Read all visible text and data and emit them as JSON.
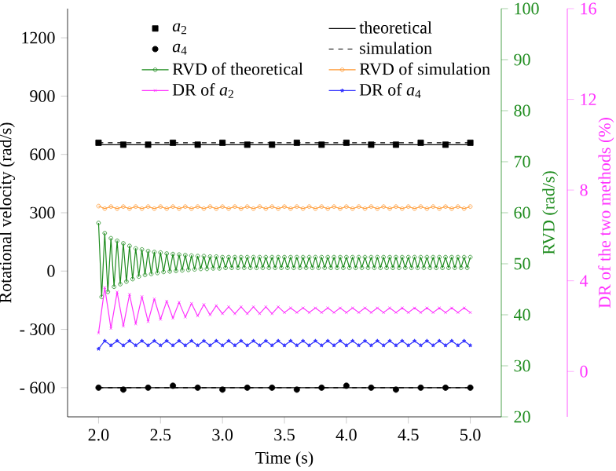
{
  "chart_data": {
    "type": "line",
    "xlabel": "Time (s)",
    "ylabel": "Rotational velocity (rad/s)",
    "y2label": "RVD (rad/s)",
    "y3label": "DR of the two methods (%)",
    "xlim": [
      1.75,
      5.25
    ],
    "xticks": [
      {
        "value": 2,
        "label": "2.0"
      },
      {
        "value": 2.5,
        "label": "2.5"
      },
      {
        "value": 3,
        "label": "3.0"
      },
      {
        "value": 3.5,
        "label": "3.5"
      },
      {
        "value": 4,
        "label": "4.0"
      },
      {
        "value": 4.5,
        "label": "4.5"
      },
      {
        "value": 5,
        "label": "5.0"
      }
    ],
    "ylim": [
      -750,
      1350
    ],
    "yticks": [
      {
        "value": -600,
        "label": "- 600"
      },
      {
        "value": -300,
        "label": "- 300"
      },
      0,
      300,
      600,
      900,
      1200
    ],
    "y2lim": [
      20,
      100
    ],
    "y2ticks": [
      20,
      30,
      40,
      50,
      60,
      70,
      80,
      90,
      100
    ],
    "y3lim": [
      -2,
      16
    ],
    "y3ticks": [
      0,
      4,
      8,
      12,
      16
    ],
    "legend": "top",
    "x": [
      2,
      2.025,
      2.05,
      2.075,
      2.1,
      2.125,
      2.15,
      2.175,
      2.2,
      2.225,
      2.25,
      2.275,
      2.3,
      2.325,
      2.35,
      2.375,
      2.4,
      2.425,
      2.45,
      2.475,
      2.5,
      2.525,
      2.55,
      2.575,
      2.6,
      2.625,
      2.65,
      2.675,
      2.7,
      2.725,
      2.75,
      2.775,
      2.8,
      2.825,
      2.85,
      2.875,
      2.9,
      2.925,
      2.95,
      2.975,
      3,
      3.025,
      3.05,
      3.075,
      3.1,
      3.125,
      3.15,
      3.175,
      3.2,
      3.225,
      3.25,
      3.275,
      3.3,
      3.325,
      3.35,
      3.375,
      3.4,
      3.425,
      3.45,
      3.475,
      3.5,
      3.525,
      3.55,
      3.575,
      3.6,
      3.625,
      3.65,
      3.675,
      3.7,
      3.725,
      3.75,
      3.775,
      3.8,
      3.825,
      3.85,
      3.875,
      3.9,
      3.925,
      3.95,
      3.975,
      4,
      4.025,
      4.05,
      4.075,
      4.1,
      4.125,
      4.15,
      4.175,
      4.2,
      4.225,
      4.25,
      4.275,
      4.3,
      4.325,
      4.35,
      4.375,
      4.4,
      4.425,
      4.45,
      4.475,
      4.5,
      4.525,
      4.55,
      4.575,
      4.6,
      4.625,
      4.65,
      4.675,
      4.7,
      4.725,
      4.75,
      4.775,
      4.8,
      4.825,
      4.85,
      4.875,
      4.9,
      4.925,
      4.95,
      4.975,
      5
    ],
    "series": [
      {
        "name": "*a*$_{2}$",
        "type": "scatter",
        "marker": "square",
        "color": "#000000",
        "x": [
          2,
          2.2,
          2.4,
          2.6,
          2.8,
          3,
          3.2,
          3.4,
          3.6,
          3.8,
          4,
          4.2,
          4.4,
          4.6,
          4.8,
          5
        ],
        "values": [
          660,
          650,
          650,
          660,
          650,
          660,
          650,
          650,
          660,
          650,
          660,
          650,
          650,
          660,
          650,
          660
        ]
      },
      {
        "name": "theoretical",
        "color": "#000000",
        "line_style": "solid",
        "x": [
          2,
          5
        ],
        "values": [
          650,
          650
        ]
      },
      {
        "name": "*a*$_{4}$",
        "type": "scatter",
        "marker": "circle",
        "color": "#000000",
        "x": [
          2,
          2.2,
          2.4,
          2.6,
          2.8,
          3,
          3.2,
          3.4,
          3.6,
          3.8,
          4,
          4.2,
          4.4,
          4.6,
          4.8,
          5
        ],
        "values": [
          -600,
          -610,
          -600,
          -590,
          -600,
          -610,
          -600,
          -600,
          -610,
          -600,
          -590,
          -600,
          -610,
          -600,
          -600,
          -600
        ]
      },
      {
        "name": "simulation",
        "color": "#000000",
        "line_style": "dashed",
        "x": [
          2,
          5
        ],
        "values": [
          660,
          660
        ]
      },
      {
        "name": "RVD of theoretical",
        "axis": "y2",
        "marker": "circle",
        "color": "#1e8c1e",
        "values": [
          58,
          43.5,
          56,
          44.5,
          55,
          45.5,
          54.5,
          46,
          54,
          46.5,
          53.5,
          47,
          53,
          47.5,
          52.8,
          47.8,
          52.5,
          48,
          52.3,
          48.2,
          52.2,
          48.4,
          52,
          48.5,
          51.9,
          48.6,
          51.8,
          48.7,
          51.7,
          48.8,
          51.6,
          48.9,
          51.5,
          49,
          51.5,
          49,
          51.4,
          49.1,
          51.4,
          49.1,
          51.3,
          49.2,
          51.3,
          49.2,
          51.3,
          49.2,
          51.3,
          49.2,
          51.3,
          49.2,
          51.3,
          49.2,
          51.3,
          49.2,
          51.3,
          49.2,
          51.3,
          49.2,
          51.3,
          49.2,
          51.3,
          49.2,
          51.3,
          49.2,
          51.3,
          49.2,
          51.3,
          49.2,
          51.3,
          49.2,
          51.3,
          49.2,
          51.3,
          49.2,
          51.3,
          49.2,
          51.3,
          49.2,
          51.3,
          49.2,
          51.3,
          49.2,
          51.3,
          49.2,
          51.3,
          49.2,
          51.3,
          49.2,
          51.3,
          49.2,
          51.3,
          49.2,
          51.3,
          49.2,
          51.3,
          49.2,
          51.3,
          49.2,
          51.3,
          49.2,
          51.3,
          49.2,
          51.3,
          49.2,
          51.3,
          49.2,
          51.3,
          49.2,
          51.3,
          49.2,
          51.3,
          49.2,
          51.3,
          49.2,
          51.3,
          49.2,
          51.3,
          49.2,
          51.3,
          49.2,
          51.3
        ]
      },
      {
        "name": "RVD of simulation",
        "axis": "y2",
        "marker": "circle",
        "color": "#ff9933",
        "x": [
          2,
          2.05,
          2.1,
          2.15,
          2.2,
          2.25,
          2.3,
          2.35,
          2.4,
          2.45,
          2.5,
          2.55,
          2.6,
          2.65,
          2.7,
          2.75,
          2.8,
          2.85,
          2.9,
          2.95,
          3,
          3.05,
          3.1,
          3.15,
          3.2,
          3.25,
          3.3,
          3.35,
          3.4,
          3.45,
          3.5,
          3.55,
          3.6,
          3.65,
          3.7,
          3.75,
          3.8,
          3.85,
          3.9,
          3.95,
          4,
          4.05,
          4.1,
          4.15,
          4.2,
          4.25,
          4.3,
          4.35,
          4.4,
          4.45,
          4.5,
          4.55,
          4.6,
          4.65,
          4.7,
          4.75,
          4.8,
          4.85,
          4.9,
          4.95,
          5
        ],
        "values": [
          61.3,
          60.8,
          61.2,
          60.8,
          61.2,
          60.8,
          61.2,
          60.8,
          61.2,
          60.8,
          61.2,
          60.8,
          61.2,
          60.8,
          61.2,
          60.8,
          61.2,
          60.8,
          61.2,
          60.8,
          61.2,
          60.8,
          61.2,
          60.8,
          61.2,
          60.8,
          61.2,
          60.8,
          61.2,
          60.8,
          61.2,
          60.8,
          61.2,
          60.8,
          61.2,
          60.8,
          61.2,
          60.8,
          61.2,
          60.8,
          61.2,
          60.8,
          61.2,
          60.8,
          61.2,
          60.8,
          61.2,
          60.8,
          61.2,
          60.8,
          61.2,
          60.8,
          61.2,
          60.8,
          61.2,
          60.8,
          61.2,
          60.8,
          61.2,
          60.8,
          61.2
        ]
      },
      {
        "name": "DR of *a*$_{2}$",
        "axis": "y3",
        "marker": "cross",
        "color": "#ff33ff",
        "x": [
          2,
          2.05,
          2.1,
          2.15,
          2.2,
          2.25,
          2.3,
          2.35,
          2.4,
          2.45,
          2.5,
          2.55,
          2.6,
          2.65,
          2.7,
          2.75,
          2.8,
          2.85,
          2.9,
          2.95,
          3,
          3.05,
          3.1,
          3.15,
          3.2,
          3.25,
          3.3,
          3.35,
          3.4,
          3.45,
          3.5,
          3.55,
          3.6,
          3.65,
          3.7,
          3.75,
          3.8,
          3.85,
          3.9,
          3.95,
          4,
          4.05,
          4.1,
          4.15,
          4.2,
          4.25,
          4.3,
          4.35,
          4.4,
          4.45,
          4.5,
          4.55,
          4.6,
          4.65,
          4.7,
          4.75,
          4.8,
          4.85,
          4.9,
          4.95,
          5
        ],
        "values": [
          1.7,
          3.7,
          1.9,
          3.5,
          2,
          3.4,
          2.1,
          3.3,
          2.2,
          3.2,
          2.3,
          3.1,
          2.35,
          3.05,
          2.4,
          3,
          2.45,
          2.95,
          2.5,
          2.9,
          2.55,
          2.85,
          2.55,
          2.85,
          2.55,
          2.85,
          2.55,
          2.85,
          2.55,
          2.85,
          2.6,
          2.8,
          2.6,
          2.8,
          2.6,
          2.8,
          2.6,
          2.8,
          2.6,
          2.8,
          2.6,
          2.8,
          2.6,
          2.8,
          2.6,
          2.8,
          2.6,
          2.8,
          2.6,
          2.8,
          2.6,
          2.8,
          2.6,
          2.8,
          2.6,
          2.8,
          2.6,
          2.8,
          2.6,
          2.8,
          2.6
        ]
      },
      {
        "name": "DR of *a*$_{4}$",
        "axis": "y3",
        "marker": "star",
        "color": "#3333ff",
        "x": [
          2,
          2.05,
          2.1,
          2.15,
          2.2,
          2.25,
          2.3,
          2.35,
          2.4,
          2.45,
          2.5,
          2.55,
          2.6,
          2.65,
          2.7,
          2.75,
          2.8,
          2.85,
          2.9,
          2.95,
          3,
          3.05,
          3.1,
          3.15,
          3.2,
          3.25,
          3.3,
          3.35,
          3.4,
          3.45,
          3.5,
          3.55,
          3.6,
          3.65,
          3.7,
          3.75,
          3.8,
          3.85,
          3.9,
          3.95,
          4,
          4.05,
          4.1,
          4.15,
          4.2,
          4.25,
          4.3,
          4.35,
          4.4,
          4.45,
          4.5,
          4.55,
          4.6,
          4.65,
          4.7,
          4.75,
          4.8,
          4.85,
          4.9,
          4.95,
          5
        ],
        "values": [
          1,
          1.35,
          1.15,
          1.35,
          1.15,
          1.35,
          1.15,
          1.35,
          1.15,
          1.35,
          1.15,
          1.35,
          1.15,
          1.35,
          1.15,
          1.35,
          1.15,
          1.35,
          1.15,
          1.35,
          1.15,
          1.35,
          1.15,
          1.35,
          1.15,
          1.35,
          1.15,
          1.35,
          1.15,
          1.35,
          1.15,
          1.35,
          1.15,
          1.35,
          1.15,
          1.35,
          1.15,
          1.35,
          1.15,
          1.35,
          1.15,
          1.35,
          1.15,
          1.35,
          1.15,
          1.35,
          1.15,
          1.35,
          1.15,
          1.35,
          1.15,
          1.35,
          1.15,
          1.35,
          1.15,
          1.35,
          1.15,
          1.35,
          1.15,
          1.35,
          1.15
        ]
      },
      {
        "color": "#000000",
        "line_style": "solid",
        "x": [
          2,
          5
        ],
        "values": [
          -600,
          -600
        ]
      },
      {
        "color": "#000000",
        "line_style": "dashed",
        "x": [
          2,
          5
        ],
        "values": [
          -600,
          -600
        ]
      }
    ]
  }
}
